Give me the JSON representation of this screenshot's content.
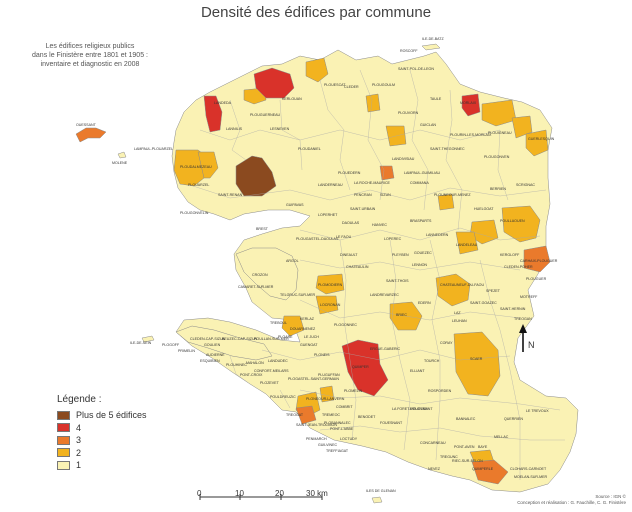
{
  "title": "Densité des édifices par commune",
  "subtitle": [
    "Les édifices religieux publics",
    "dans le Finistère entre 1801 et 1905 :",
    "inventaire et diagnostic en 2008"
  ],
  "legend": {
    "title": "Légende :",
    "items": [
      {
        "label": "Plus de 5 édifices",
        "color": "#8b4a1f"
      },
      {
        "label": "4",
        "color": "#d9322a"
      },
      {
        "label": "3",
        "color": "#ea7a2c"
      },
      {
        "label": "2",
        "color": "#f2b31f"
      },
      {
        "label": "1",
        "color": "#faf2b4"
      }
    ]
  },
  "scale": {
    "ticks": [
      "0",
      "10",
      "20",
      "30 km"
    ]
  },
  "north": "N",
  "source": [
    "Source : IGN ©",
    "Conception et réalisation : G. Fauchille, C. G. Finistère"
  ],
  "labels": {
    "ile_de_batz": "ILE-DE-BATZ",
    "ile_de_sein": "ILE-DE-SEIN",
    "iles_de_glenan": "ILES DE GLENAN",
    "landeda": "LANDEDA",
    "plouguerneau": "PLOUGUERNEAU",
    "brest": "BREST",
    "plougastel": "PLOUGASTEL-DAOULAS",
    "crozon": "CROZON",
    "quimper": "QUIMPER",
    "chateaulin": "CHATEAULIN",
    "carhaix": "CARHAIX-PLOUGUER",
    "quimperle": "QUIMPERLE",
    "morlaix": "MORLAIX",
    "landivisiau": "LANDIVISIAU",
    "douarnenez": "DOUARNENEZ",
    "pont_labbe": "PONT-L'ABBE",
    "concarneau": "CONCARNEAU",
    "scaer": "SCAER",
    "huelgoat": "HUELGOAT",
    "plouneour": "PLOUNEOUR-MENEZ",
    "landerneau": "LANDERNEAU",
    "ploudalmezeau": "PLOUDALMEZEAU",
    "plougonvelin": "PLOUGONVELIN",
    "guerlesquin": "GUERLESQUIN",
    "roscoff": "ROSCOFF",
    "saint_pol": "SAINT-POL-DE-LEON",
    "poullaouen": "POULLAOUEN",
    "pleyben": "PLEYBEN",
    "ergue": "ERGUE-GABERIC",
    "elliant": "ELLIANT",
    "bannalec": "BANNALEC",
    "plouhinec": "PLOUHINEC",
    "audierne": "AUDIERNE",
    "plozevet": "PLOZEVET",
    "fouesnant": "FOUESNANT",
    "moelan": "MOELAN-SUR-MER",
    "rosporden": "ROSPORDEN",
    "chateauneuf": "CHATEAUNEUF-DU-FAOU",
    "spezet": "SPEZET",
    "gourin_lbl": "LANDELEAU",
    "plouescat": "PLOUESCAT",
    "lesneven": "LESNEVEN",
    "ploudaniel": "PLOUDANIEL",
    "sizun": "SIZUN",
    "commana": "COMMANA",
    "le_faou": "LE FAOU",
    "plomodiern": "PLOMODIERN",
    "locronan": "LOCRONAN",
    "briec": "BRIEC",
    "coray": "CORAY",
    "plogonnec": "PLOGONNEC",
    "penmarch": "PENMARCH",
    "tregunc": "TREGUNC",
    "pont_aven": "PONT-AVEN",
    "clohars": "CLOHARS-CARNOET",
    "ouessant": "OUESSANT",
    "molene": "MOLENE",
    "lampaul": "LAMPAUL-PLOUARZEL",
    "plouarzel": "PLOUARZEL",
    "saint_renan": "SAINT-RENAN",
    "guipavas": "GUIPAVAS",
    "loperhet": "LOPERHET",
    "daoulas": "DAOULAS",
    "camaret": "CAMARET-SUR-MER",
    "telgruc": "TELGRUC-SUR-MER",
    "argol": "ARGOL",
    "dineault": "DINEAULT",
    "pont_croix": "PONT-CROIX",
    "cleden": "CLEDEN-CAP-SIZUN",
    "plouguer": "PLOUGUER",
    "lannilis": "LANNILIS",
    "kerlouan": "KERLOUAN",
    "cleder": "CLEDER",
    "plougoulm": "PLOUGOULM",
    "taule": "TAULE",
    "plouigneau": "PLOUIGNEAU",
    "plougonven": "PLOUGONVEN",
    "scrignac": "SCRIGNAC",
    "berrien": "BERRIEN",
    "plourin": "PLOURIN-LES-MORLAIX",
    "saint_thegonnec": "SAINT-THEGONNEC",
    "guiclan": "GUICLAN",
    "plouvorn": "PLOUVORN",
    "lampaul_guimiliau": "LAMPAUL-GUIMILIAU",
    "plouedern": "PLOUEDERN",
    "la_roche": "LA ROCHE-MAURICE",
    "pencran": "PENCRAN",
    "saint_urbain": "SAINT-URBAIN",
    "hanvec": "HANVEC",
    "lopérec": "LOPEREC",
    "brasparts": "BRASPARTS",
    "lannedern": "LANNEDERN",
    "lennon": "LENNON",
    "landrevarzec": "LANDREVARZEC",
    "edern": "EDERN",
    "leuhan": "LEUHAN",
    "tourch": "TOURCH",
    "saint_thois": "SAINT-THOIS",
    "gouezec": "GOUEZEC",
    "saint_goazec": "SAINT-GOAZEC",
    "laz": "LAZ",
    "kergloff": "KERGLOFF",
    "cleden_poher": "CLEDEN-POHER",
    "motreff": "MOTREFF",
    "treogan": "TREOGAN",
    "saint_hernin": "SAINT-HERNIN",
    "melgven": "MELGVEN",
    "querrien": "QUERRIEN",
    "mellac": "MELLAC",
    "baye": "BAYE",
    "le_treveur": "LE TREVOUX",
    "riec": "RIEC-SUR-BELON",
    "nevez": "NEVEZ",
    "la_foret": "LA FORET-FOUESNANT",
    "benodet": "BENODET",
    "combrit": "COMBRIT",
    "plomelin": "PLOMELIN",
    "pluguffan": "PLUGUFFAN",
    "plonéis": "PLONEIS",
    "guengat": "GUENGAT",
    "landudec": "LANDUDEC",
    "pouldreuzic": "POULDREUZIC",
    "plonéour": "PLONEOUR-LANVERN",
    "treogat": "TREOGAT",
    "loctudy": "LOCTUDY",
    "guilvinec": "GUILVINEC",
    "treffiagat": "TREFFIAGAT",
    "plobannalec": "PLOBANNALEC",
    "saint_jean": "SAINT-JEAN-TROLIMON",
    "tremeoc": "TREMEOC",
    "plogastel": "PLOGASTEL-SAINT-GERMAIN",
    "mahalon": "MAHALON",
    "confort": "CONFORT-MEILARS",
    "beuzec": "BEUZEC-CAP-SIZUN",
    "goulien": "GOULIEN",
    "primelin": "PRIMELIN",
    "esquibien": "ESQUIBIEN",
    "plogoff": "PLOGOFF",
    "kerlaz": "KERLAZ",
    "le_juch": "LE JUCH",
    "ploare": "PLOARE",
    "poullan": "POULLAN-SUR-MER",
    "treboul": "TREBOUL"
  }
}
